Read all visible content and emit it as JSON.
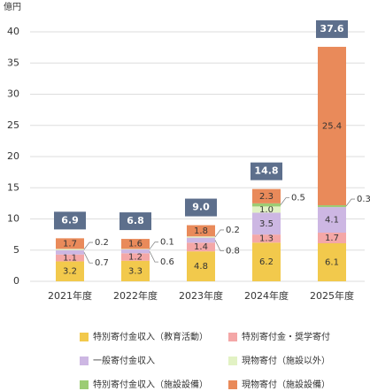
{
  "chart_data": {
    "type": "stacked_bar",
    "y_unit": "億円",
    "categories": [
      "2021年度",
      "2022年度",
      "2023年度",
      "2024年度",
      "2025年度"
    ],
    "series": [
      {
        "name": "特別寄付金収入（教育活動）",
        "color": "#f2c94c",
        "values": [
          3.2,
          3.3,
          4.8,
          6.2,
          6.1
        ]
      },
      {
        "name": "特別寄付金・奨学寄付",
        "color": "#f4a7a7",
        "values": [
          1.1,
          1.2,
          1.4,
          1.3,
          1.7
        ]
      },
      {
        "name": "一般寄付金収入",
        "color": "#cdb7e3",
        "values": [
          0.7,
          0.6,
          0.8,
          3.5,
          4.1
        ]
      },
      {
        "name": "現物寄付（施設以外）",
        "color": "#e2f2c4",
        "values": [
          0.2,
          0.1,
          0.2,
          1.0,
          null
        ],
        "value_labels": [
          "0.2",
          "0.1",
          "0.2",
          "1.0",
          null
        ]
      },
      {
        "name": "特別寄付金収入（施設設備）",
        "color": "#9ccc74",
        "values": [
          null,
          null,
          null,
          0.5,
          0.3
        ]
      },
      {
        "name": "現物寄付（施設設備）",
        "color": "#e98a5a",
        "values": [
          1.7,
          1.6,
          1.8,
          2.3,
          25.4
        ]
      }
    ],
    "totals": {
      "values": [
        6.9,
        6.8,
        9.0,
        14.8,
        37.6
      ],
      "value_labels": [
        "6.9",
        "6.8",
        "9.0",
        "14.8",
        "37.6"
      ],
      "color": "#5d6f8c"
    },
    "ylim": [
      0,
      40
    ],
    "yticks": [
      0,
      5,
      10,
      15,
      20,
      25,
      30,
      35,
      40
    ],
    "grid": true
  }
}
